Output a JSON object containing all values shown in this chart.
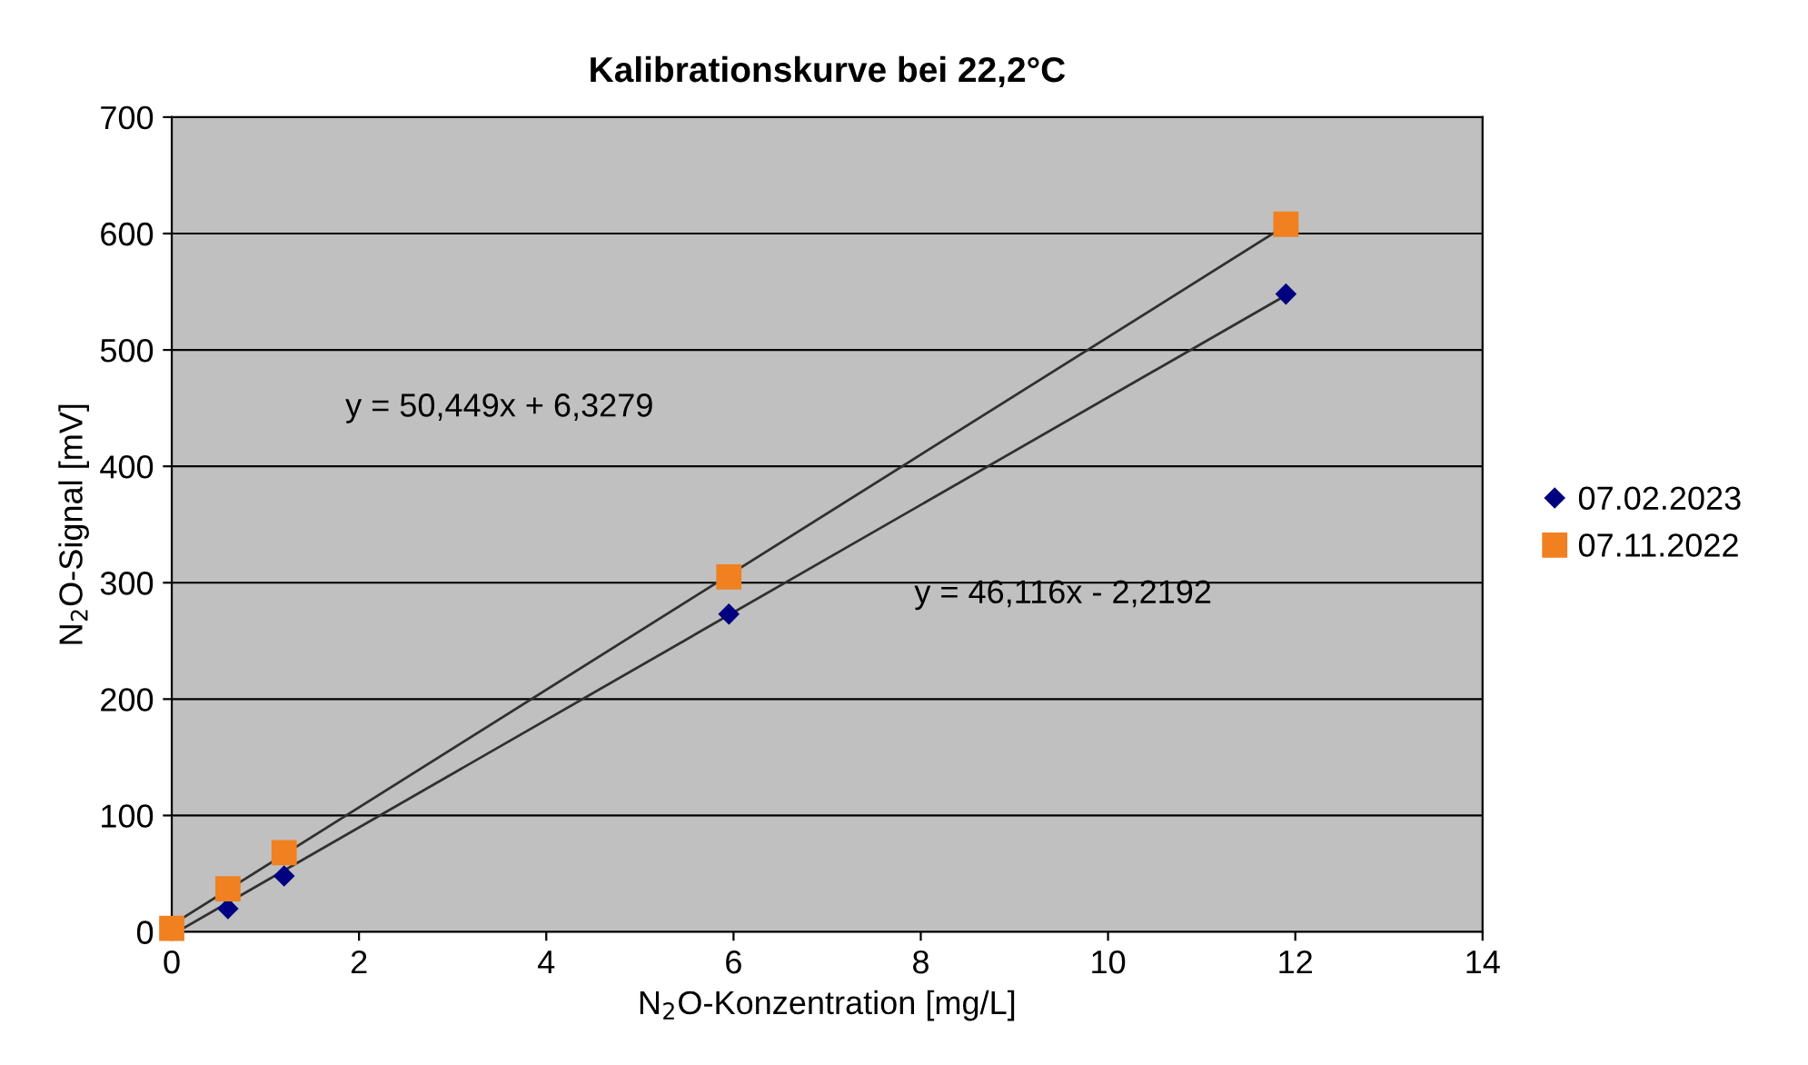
{
  "chart_data": {
    "type": "scatter",
    "title": "Kalibrationskurve bei 22,2°C",
    "xlabel": "N$_{2}$O-Konzentration [mg/L]",
    "ylabel": "N$_{2}$O-Signal [mV]",
    "series": [
      {
        "name": "07.02.2023",
        "color": "#000080",
        "marker": "diamond",
        "x": [
          0.6,
          1.2,
          5.95,
          11.9
        ],
        "values": [
          20,
          48,
          273,
          548
        ]
      },
      {
        "name": "07.11.2022",
        "color": "#f08020",
        "marker": "square",
        "x": [
          0,
          0.6,
          1.2,
          5.95,
          11.9
        ],
        "values": [
          3,
          37,
          68,
          305,
          608
        ]
      },
      {
        "type": "line",
        "color": "#303030",
        "x": [
          0.1,
          11.9
        ],
        "values": [
          2,
          547
        ]
      },
      {
        "type": "line",
        "color": "#303030",
        "x": [
          0,
          11.9
        ],
        "values": [
          6,
          607
        ]
      }
    ],
    "annotations": [
      "y = 50,449x + 6,3279",
      "y = 46,116x - 2,2192"
    ],
    "xlim": [
      0,
      14
    ],
    "xticks": [
      0,
      2,
      4,
      6,
      8,
      10,
      12,
      14
    ],
    "ylim": [
      0,
      700
    ],
    "yticks": [
      0,
      100,
      200,
      300,
      400,
      500,
      600,
      700
    ],
    "grid": "y",
    "legend": "right"
  }
}
